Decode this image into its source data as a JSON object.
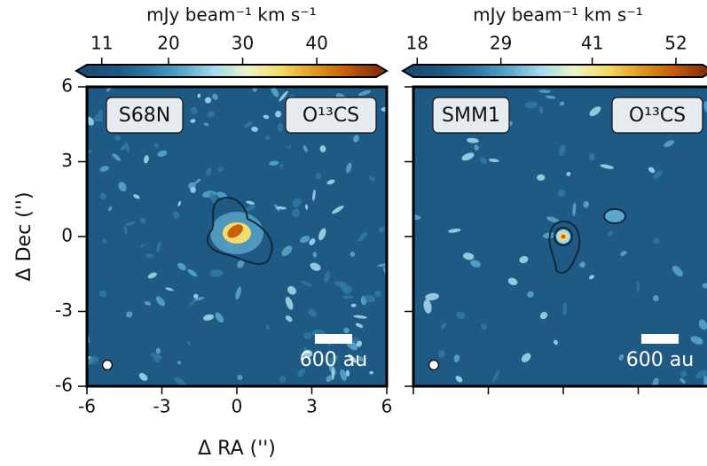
{
  "chart_data": [
    {
      "type": "image",
      "source": "S68N",
      "molecule": "O¹³CS",
      "scale_bar": "600 au",
      "xlabel": "Δ RA ('')",
      "ylabel": "Δ Dec ('')",
      "xlim": [
        -6,
        6
      ],
      "ylim": [
        -6,
        6
      ],
      "xticks": [
        -6,
        -3,
        0,
        3,
        6
      ],
      "yticks": [
        -6,
        -3,
        0,
        3,
        6
      ],
      "ticklabels": true,
      "colorbar": {
        "label": "mJy beam⁻¹ km s⁻¹",
        "lim": [
          9,
          48
        ],
        "ticks": [
          11,
          20,
          30,
          40
        ],
        "colormap": [
          "#1a4a70",
          "#1f5a84",
          "#2f7aa6",
          "#5aa8cc",
          "#a8daea",
          "#eef3c8",
          "#f3dc6a",
          "#e2a020",
          "#c86010",
          "#8a3208"
        ]
      }
    },
    {
      "type": "image",
      "source": "SMM1",
      "molecule": "O¹³CS",
      "scale_bar": "600 au",
      "xlim": [
        -6,
        6
      ],
      "ylim": [
        -6,
        6
      ],
      "xticks": [
        -6,
        -3,
        0,
        3,
        6
      ],
      "yticks": [
        -6,
        -3,
        0,
        3,
        6
      ],
      "ticklabels": false,
      "colorbar": {
        "label": "mJy beam⁻¹ km s⁻¹",
        "lim": [
          17.5,
          55.5
        ],
        "ticks": [
          18,
          29,
          41,
          52
        ],
        "colormap": [
          "#1a4a70",
          "#1f5a84",
          "#2f7aa6",
          "#5aa8cc",
          "#a8daea",
          "#eef3c8",
          "#f3dc6a",
          "#e2a020",
          "#c86010",
          "#8a3208"
        ]
      }
    }
  ]
}
